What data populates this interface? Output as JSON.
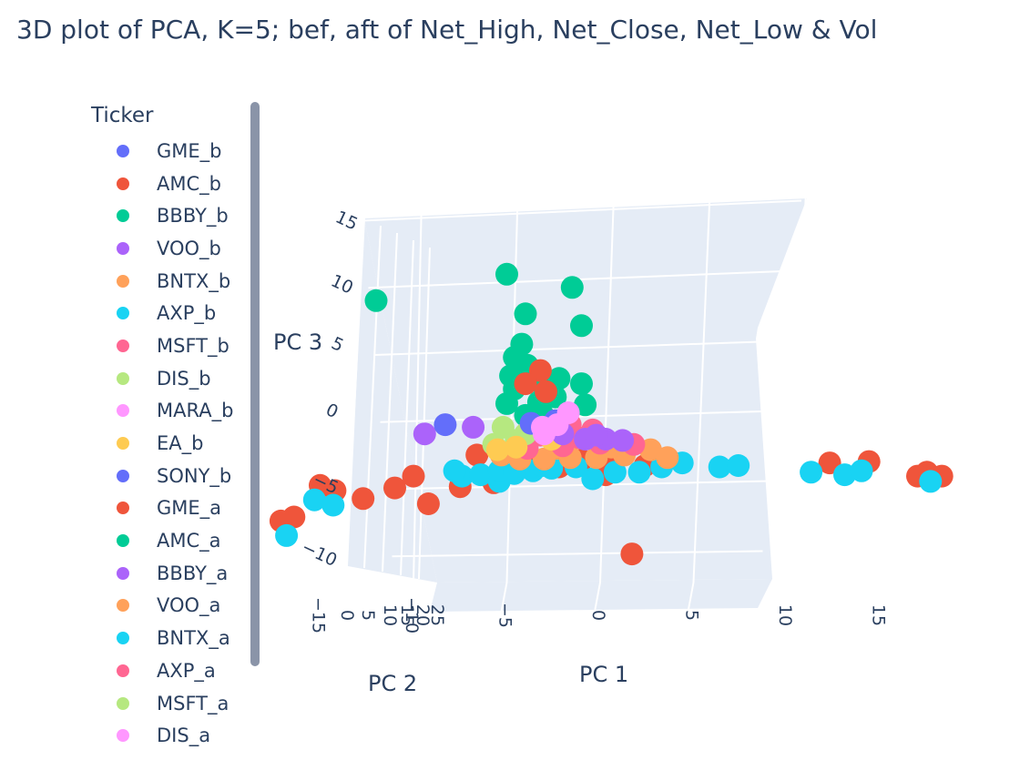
{
  "title": "3D plot of PCA, K=5; bef, aft of Net_High, Net_Close, Net_Low & Vol",
  "legend": {
    "title": "Ticker",
    "items": [
      {
        "label": "GME_b",
        "color": "#636efa"
      },
      {
        "label": "AMC_b",
        "color": "#EF553B"
      },
      {
        "label": "BBBY_b",
        "color": "#00cc96"
      },
      {
        "label": "VOO_b",
        "color": "#ab63fa"
      },
      {
        "label": "BNTX_b",
        "color": "#FFA15A"
      },
      {
        "label": "AXP_b",
        "color": "#19d3f3"
      },
      {
        "label": "MSFT_b",
        "color": "#FF6692"
      },
      {
        "label": "DIS_b",
        "color": "#B6E880"
      },
      {
        "label": "MARA_b",
        "color": "#FF97FF"
      },
      {
        "label": "EA_b",
        "color": "#FECB52"
      },
      {
        "label": "SONY_b",
        "color": "#636efa"
      },
      {
        "label": "GME_a",
        "color": "#EF553B"
      },
      {
        "label": "AMC_a",
        "color": "#00cc96"
      },
      {
        "label": "BBBY_a",
        "color": "#ab63fa"
      },
      {
        "label": "VOO_a",
        "color": "#FFA15A"
      },
      {
        "label": "BNTX_a",
        "color": "#19d3f3"
      },
      {
        "label": "AXP_a",
        "color": "#FF6692"
      },
      {
        "label": "MSFT_a",
        "color": "#B6E880"
      },
      {
        "label": "DIS_a",
        "color": "#FF97FF"
      }
    ]
  },
  "chart_data": {
    "type": "scatter",
    "title": "3D plot of PCA, K=5; bef, aft of Net_High, Net_Close, Net_Low & Vol",
    "xlabel": "PC 1",
    "ylabel": "PC 2",
    "zlabel": "PC 3",
    "x_ticks": [
      "−15",
      "−10",
      "−5",
      "0",
      "5",
      "10",
      "15"
    ],
    "y_ticks": [
      "0",
      "5",
      "10",
      "15",
      "20",
      "25"
    ],
    "z_ticks": [
      "15",
      "10",
      "5",
      "0",
      "−5",
      "−10"
    ],
    "x_range": [
      -18,
      18
    ],
    "z_range": [
      -12,
      16
    ],
    "legend_position": "left",
    "background": "#e5ecf6",
    "series": [
      {
        "name": "AMC_a",
        "color": "#00cc96",
        "points": [
          [
            -5,
            11.5
          ],
          [
            -1.5,
            10.5
          ],
          [
            -12,
            9.5
          ],
          [
            -4,
            8.5
          ],
          [
            -1,
            7.6
          ],
          [
            -4.2,
            6.2
          ],
          [
            -4.6,
            5.2
          ],
          [
            -3.9,
            4.6
          ],
          [
            -4.8,
            3.8
          ],
          [
            -2.2,
            3.6
          ],
          [
            -3.2,
            3.3
          ],
          [
            -1,
            3.2
          ],
          [
            -4.6,
            2.8
          ],
          [
            -2.4,
            2.2
          ],
          [
            -3.3,
            1.8
          ],
          [
            -0.8,
            1.6
          ],
          [
            -5,
            1.7
          ],
          [
            -4,
            0.8
          ],
          [
            -2,
            0.5
          ],
          [
            -3.1,
            0.9
          ]
        ]
      },
      {
        "name": "GME_a",
        "color": "#EF553B",
        "points": [
          [
            -3.2,
            4.2
          ],
          [
            -4.0,
            3.2
          ],
          [
            -2.9,
            2.6
          ],
          [
            17.5,
            -3.5
          ],
          [
            18.3,
            -3.8
          ],
          [
            17.0,
            -3.8
          ],
          [
            14.4,
            -2.7
          ],
          [
            12.3,
            -2.8
          ],
          [
            0.3,
            -3.7
          ],
          [
            -15,
            -4.5
          ],
          [
            -12.7,
            -5.5
          ],
          [
            -11,
            -4.7
          ],
          [
            -9.2,
            -5.9
          ],
          [
            -7.5,
            -4.6
          ],
          [
            -5.7,
            -4.3
          ],
          [
            -10,
            -3.8
          ],
          [
            -14.2,
            -4.9
          ],
          [
            -16.4,
            -6.9
          ],
          [
            -17.1,
            -7.2
          ],
          [
            -6.6,
            -2.2
          ],
          [
            -2.3,
            -2.4
          ],
          [
            0.5,
            -2.9
          ],
          [
            2.4,
            -3.0
          ],
          [
            -4.0,
            -2.7
          ],
          [
            -2.2,
            -3.1
          ],
          [
            -1.0,
            -2.6
          ],
          [
            1.7,
            -9.7
          ]
        ]
      },
      {
        "name": "BNTX_a",
        "color": "#19d3f3",
        "points": [
          [
            -16.8,
            -8.3
          ],
          [
            -15.3,
            -5.6
          ],
          [
            -14.3,
            -6.0
          ],
          [
            -7.4,
            -3.8
          ],
          [
            -7.8,
            -3.4
          ],
          [
            -6.4,
            -3.7
          ],
          [
            -5.4,
            -4.2
          ],
          [
            -3.6,
            -3.4
          ],
          [
            -3.1,
            -3.0
          ],
          [
            -1.3,
            -3.1
          ],
          [
            -0.4,
            -4.0
          ],
          [
            0.8,
            -3.5
          ],
          [
            2.1,
            -3.5
          ],
          [
            3.3,
            -3.1
          ],
          [
            4.4,
            -2.8
          ],
          [
            6.4,
            -3.1
          ],
          [
            7.4,
            -3.0
          ],
          [
            11.3,
            -3.5
          ],
          [
            13.1,
            -3.7
          ],
          [
            14.0,
            -3.4
          ],
          [
            17.7,
            -4.2
          ],
          [
            -5.4,
            -3.4
          ],
          [
            -4.6,
            -3.6
          ],
          [
            -2.6,
            -3.2
          ]
        ]
      },
      {
        "name": "BNTX_b",
        "color": "#FFA15A",
        "points": [
          [
            -4.3,
            -2.5
          ],
          [
            -3.0,
            -2.5
          ],
          [
            -1.6,
            -2.4
          ],
          [
            -0.2,
            -2.4
          ],
          [
            1.3,
            -2.2
          ],
          [
            3.6,
            -2.4
          ],
          [
            -2.3,
            -1.7
          ],
          [
            0.6,
            -1.6
          ],
          [
            -5.3,
            -2.2
          ],
          [
            2.7,
            -1.8
          ]
        ]
      },
      {
        "name": "MSFT_b",
        "color": "#FF6692",
        "points": [
          [
            -3.9,
            -1.7
          ],
          [
            -2.0,
            -1.5
          ],
          [
            0.0,
            -1.3
          ],
          [
            1.8,
            -1.4
          ],
          [
            -1.1,
            -0.9
          ],
          [
            -3.2,
            -0.7
          ],
          [
            -1.6,
            0.1
          ],
          [
            -0.4,
            -0.3
          ]
        ]
      },
      {
        "name": "DIS_b",
        "color": "#B6E880",
        "points": [
          [
            -5.7,
            -1.4
          ],
          [
            -4.5,
            -1.1
          ],
          [
            -5.2,
            -0.1
          ],
          [
            -4.0,
            -0.6
          ]
        ]
      },
      {
        "name": "EA_b",
        "color": "#FECB52",
        "points": [
          [
            -4.5,
            -1.6
          ],
          [
            -5.5,
            -1.8
          ],
          [
            -2.6,
            -1.0
          ]
        ]
      },
      {
        "name": "VOO_b",
        "color": "#ab63fa",
        "points": [
          [
            -9.4,
            -0.6
          ],
          [
            -6.8,
            -0.1
          ],
          [
            -0.8,
            -1.0
          ],
          [
            0.3,
            -1.0
          ],
          [
            1.2,
            -1.1
          ],
          [
            -2.0,
            -0.6
          ],
          [
            -0.2,
            -0.7
          ]
        ]
      },
      {
        "name": "GME_b",
        "color": "#636efa",
        "points": [
          [
            -8.3,
            0.1
          ],
          [
            -3.7,
            0.2
          ],
          [
            -2.4,
            0.4
          ]
        ]
      },
      {
        "name": "MARA_b",
        "color": "#FF97FF",
        "points": [
          [
            -2.3,
            0.1
          ],
          [
            -3.1,
            -0.1
          ],
          [
            -1.7,
            1.0
          ]
        ]
      },
      {
        "name": "DIS_a",
        "color": "#FF97FF",
        "points": [
          [
            -3.0,
            -0.6
          ]
        ]
      }
    ]
  }
}
